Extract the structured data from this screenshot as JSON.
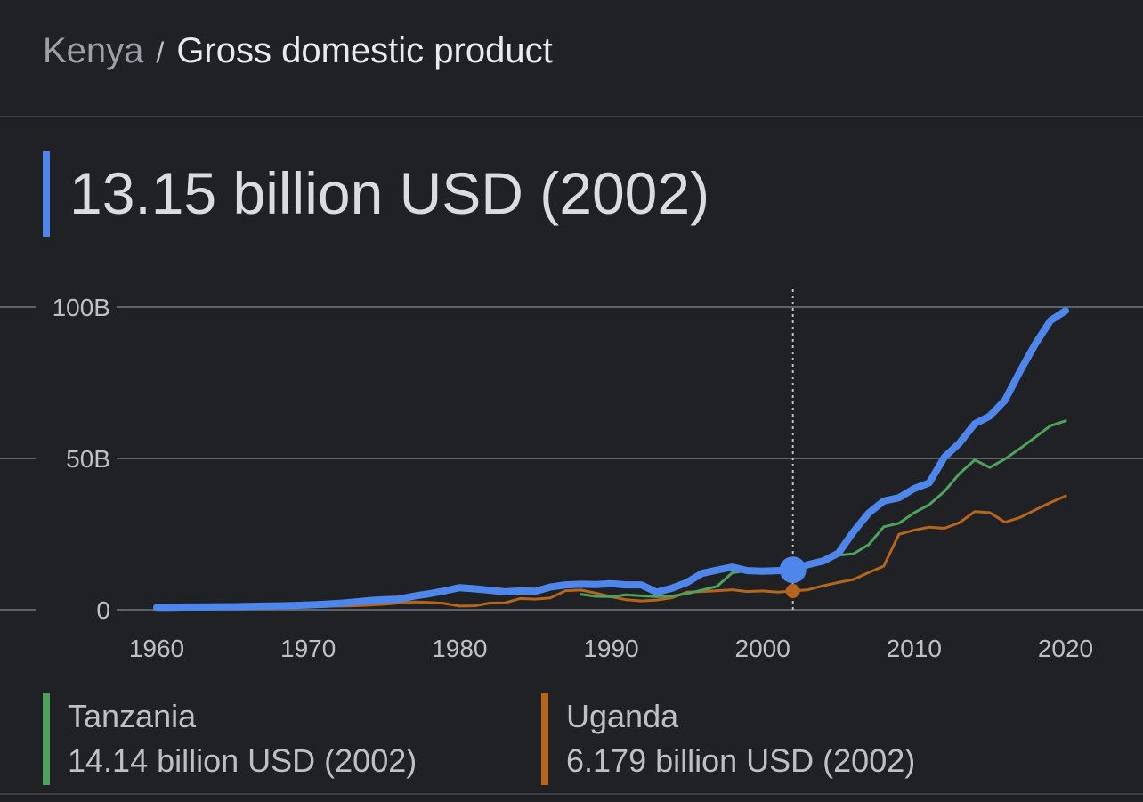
{
  "breadcrumb": {
    "country": "Kenya",
    "separator": "/",
    "page": "Gross domestic product"
  },
  "headline": {
    "value_text": "13.15 billion USD (2002)",
    "color": "#4f86ec"
  },
  "legend": [
    {
      "name": "Tanzania",
      "value_text": "14.14 billion USD (2002)",
      "color": "#4ea15f"
    },
    {
      "name": "Uganda",
      "value_text": "6.179 billion USD (2002)",
      "color": "#b5651d"
    }
  ],
  "chart_data": {
    "type": "line",
    "title": "",
    "xlabel": "",
    "ylabel": "",
    "xlim": [
      1960,
      2020
    ],
    "ylim": [
      0,
      100
    ],
    "x_ticks": [
      1960,
      1970,
      1980,
      1990,
      2000,
      2010,
      2020
    ],
    "x_tick_labels": [
      "1960",
      "1970",
      "1980",
      "1990",
      "2000",
      "2010",
      "2020"
    ],
    "y_ticks": [
      0,
      50,
      100
    ],
    "y_tick_labels": [
      "0",
      "50B",
      "100B"
    ],
    "grid": "horizontal",
    "highlight_x": 2002,
    "series": [
      {
        "name": "Kenya",
        "color": "#4f86ec",
        "x": [
          1960,
          1961,
          1962,
          1963,
          1964,
          1965,
          1966,
          1967,
          1968,
          1969,
          1970,
          1971,
          1972,
          1973,
          1974,
          1975,
          1976,
          1977,
          1978,
          1979,
          1980,
          1981,
          1982,
          1983,
          1984,
          1985,
          1986,
          1987,
          1988,
          1989,
          1990,
          1991,
          1992,
          1993,
          1994,
          1995,
          1996,
          1997,
          1998,
          1999,
          2000,
          2001,
          2002,
          2003,
          2004,
          2005,
          2006,
          2007,
          2008,
          2009,
          2010,
          2011,
          2012,
          2013,
          2014,
          2015,
          2016,
          2017,
          2018,
          2019,
          2020
        ],
        "values": [
          0.8,
          0.8,
          0.9,
          0.9,
          1.0,
          1.0,
          1.1,
          1.2,
          1.3,
          1.4,
          1.6,
          1.8,
          2.1,
          2.5,
          3.0,
          3.3,
          3.5,
          4.5,
          5.3,
          6.2,
          7.3,
          6.9,
          6.4,
          5.9,
          6.2,
          6.1,
          7.5,
          8.2,
          8.4,
          8.3,
          8.6,
          8.2,
          8.2,
          5.8,
          7.1,
          9.0,
          12.0,
          13.1,
          14.1,
          12.9,
          12.7,
          12.9,
          13.15,
          14.9,
          16.1,
          18.7,
          25.8,
          31.9,
          35.9,
          37.0,
          40.0,
          41.9,
          50.4,
          55.1,
          61.4,
          64.0,
          69.2,
          78.8,
          87.8,
          95.5,
          98.8
        ]
      },
      {
        "name": "Tanzania",
        "color": "#4ea15f",
        "x": [
          1988,
          1989,
          1990,
          1991,
          1992,
          1993,
          1994,
          1995,
          1996,
          1997,
          1998,
          1999,
          2000,
          2001,
          2002,
          2003,
          2004,
          2005,
          2006,
          2007,
          2008,
          2009,
          2010,
          2011,
          2012,
          2013,
          2014,
          2015,
          2016,
          2017,
          2018,
          2019,
          2020
        ],
        "values": [
          5.1,
          4.4,
          4.3,
          4.9,
          4.6,
          4.3,
          4.5,
          5.3,
          6.5,
          7.7,
          12.2,
          12.9,
          13.4,
          13.5,
          14.14,
          15.0,
          16.5,
          18.0,
          18.5,
          21.5,
          27.4,
          28.6,
          32.0,
          34.7,
          39.1,
          45.0,
          49.5,
          47.0,
          49.8,
          53.3,
          57.0,
          60.8,
          62.4
        ]
      },
      {
        "name": "Uganda",
        "color": "#b5651d",
        "x": [
          1960,
          1961,
          1962,
          1963,
          1964,
          1965,
          1966,
          1967,
          1968,
          1969,
          1970,
          1971,
          1972,
          1973,
          1974,
          1975,
          1976,
          1977,
          1978,
          1979,
          1980,
          1981,
          1982,
          1983,
          1984,
          1985,
          1986,
          1987,
          1988,
          1989,
          1990,
          1991,
          1992,
          1993,
          1994,
          1995,
          1996,
          1997,
          1998,
          1999,
          2000,
          2001,
          2002,
          2003,
          2004,
          2005,
          2006,
          2007,
          2008,
          2009,
          2010,
          2011,
          2012,
          2013,
          2014,
          2015,
          2016,
          2017,
          2018,
          2019,
          2020
        ],
        "values": [
          0.4,
          0.4,
          0.4,
          0.5,
          0.6,
          0.6,
          0.7,
          0.7,
          0.8,
          0.9,
          1.0,
          1.1,
          1.2,
          1.3,
          1.5,
          1.8,
          2.2,
          2.6,
          2.4,
          2.1,
          1.2,
          1.3,
          2.2,
          2.3,
          3.7,
          3.5,
          3.9,
          6.3,
          6.5,
          5.5,
          4.3,
          3.3,
          2.9,
          3.2,
          3.9,
          5.8,
          6.0,
          6.3,
          6.6,
          6.0,
          6.2,
          5.8,
          6.179,
          6.6,
          7.9,
          9.0,
          10.0,
          12.3,
          14.4,
          24.9,
          26.3,
          27.3,
          26.9,
          28.8,
          32.4,
          32.1,
          28.9,
          30.5,
          33.0,
          35.4,
          37.6
        ]
      }
    ]
  }
}
